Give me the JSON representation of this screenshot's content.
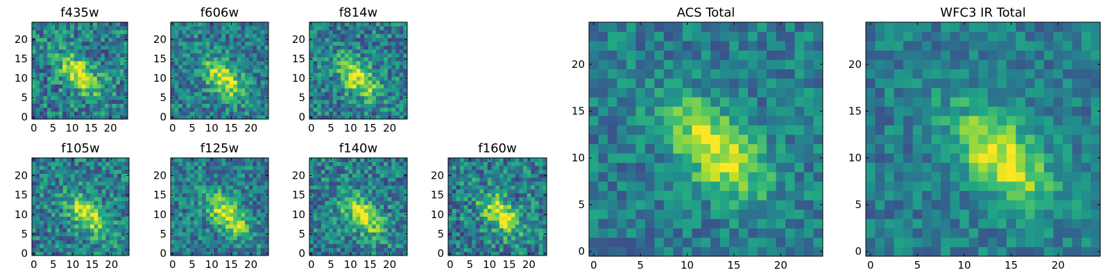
{
  "chart_data": [
    {
      "type": "heatmap",
      "title": "f435w",
      "xticks": [
        0,
        5,
        10,
        15,
        20
      ],
      "yticks": [
        0,
        5,
        10,
        15,
        20
      ],
      "xlim": [
        0,
        25
      ],
      "ylim": [
        0,
        25
      ],
      "colormap": "viridis",
      "source_center": [
        12,
        11
      ],
      "noise": 0.32,
      "seed": 11
    },
    {
      "type": "heatmap",
      "title": "f606w",
      "xticks": [
        0,
        5,
        10,
        15,
        20
      ],
      "yticks": [
        0,
        5,
        10,
        15,
        20
      ],
      "xlim": [
        0,
        25
      ],
      "ylim": [
        0,
        25
      ],
      "colormap": "viridis",
      "source_center": [
        13,
        10
      ],
      "noise": 0.28,
      "seed": 23
    },
    {
      "type": "heatmap",
      "title": "f814w",
      "xticks": [
        0,
        5,
        10,
        15,
        20
      ],
      "yticks": [
        0,
        5,
        10,
        15,
        20
      ],
      "xlim": [
        0,
        25
      ],
      "ylim": [
        0,
        25
      ],
      "colormap": "viridis",
      "source_center": [
        12,
        10
      ],
      "noise": 0.3,
      "seed": 37
    },
    {
      "type": "heatmap",
      "title": "f105w",
      "xticks": [
        0,
        5,
        10,
        15,
        20
      ],
      "yticks": [
        0,
        5,
        10,
        15,
        20
      ],
      "xlim": [
        0,
        25
      ],
      "ylim": [
        0,
        25
      ],
      "colormap": "viridis",
      "source_center": [
        14,
        10
      ],
      "noise": 0.3,
      "seed": 41
    },
    {
      "type": "heatmap",
      "title": "f125w",
      "xticks": [
        0,
        5,
        10,
        15,
        20
      ],
      "yticks": [
        0,
        5,
        10,
        15,
        20
      ],
      "xlim": [
        0,
        25
      ],
      "ylim": [
        0,
        25
      ],
      "colormap": "viridis",
      "source_center": [
        14,
        10
      ],
      "noise": 0.28,
      "seed": 53
    },
    {
      "type": "heatmap",
      "title": "f140w",
      "xticks": [
        0,
        5,
        10,
        15,
        20
      ],
      "yticks": [
        0,
        5,
        10,
        15,
        20
      ],
      "xlim": [
        0,
        25
      ],
      "ylim": [
        0,
        25
      ],
      "colormap": "viridis",
      "source_center": [
        13,
        10
      ],
      "noise": 0.3,
      "seed": 67
    },
    {
      "type": "heatmap",
      "title": "f160w",
      "xticks": [
        0,
        5,
        10,
        15,
        20
      ],
      "yticks": [
        0,
        5,
        10,
        15,
        20
      ],
      "xlim": [
        0,
        25
      ],
      "ylim": [
        0,
        25
      ],
      "colormap": "viridis",
      "source_center": [
        13,
        10
      ],
      "noise": 0.32,
      "seed": 79
    },
    {
      "type": "heatmap",
      "title": "ACS Total",
      "xticks": [
        0,
        5,
        10,
        15,
        20
      ],
      "yticks": [
        0,
        5,
        10,
        15,
        20
      ],
      "xlim": [
        0,
        25
      ],
      "ylim": [
        0,
        25
      ],
      "colormap": "viridis",
      "source_center": [
        13,
        11
      ],
      "noise": 0.22,
      "seed": 97
    },
    {
      "type": "heatmap",
      "title": "WFC3 IR Total",
      "xticks": [
        0,
        5,
        10,
        15,
        20
      ],
      "yticks": [
        0,
        5,
        10,
        15,
        20
      ],
      "xlim": [
        0,
        25
      ],
      "ylim": [
        0,
        25
      ],
      "colormap": "viridis",
      "source_center": [
        14,
        10
      ],
      "noise": 0.2,
      "seed": 113
    }
  ]
}
